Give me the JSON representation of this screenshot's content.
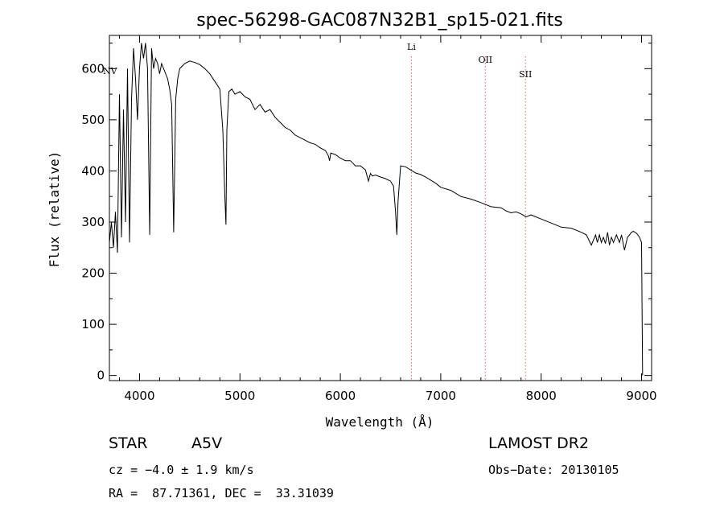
{
  "chart_data": {
    "type": "line",
    "title": "spec-56298-GAC087N32B1_sp15-021.fits",
    "xlabel": "Wavelength (Å)",
    "ylabel": "Flux (relative)",
    "xlim": [
      3700,
      9100
    ],
    "ylim": [
      -10,
      665
    ],
    "xticks": [
      4000,
      5000,
      6000,
      7000,
      8000,
      9000
    ],
    "yticks": [
      0,
      100,
      200,
      300,
      400,
      500,
      600
    ],
    "grid": false,
    "spectral_lines": [
      {
        "label": "NV",
        "x": 3720
      },
      {
        "label": "Li",
        "x": 6708
      },
      {
        "label": "OII",
        "x": 7444
      },
      {
        "label": "SII",
        "x": 7844
      }
    ],
    "series": [
      {
        "x": [
          3700,
          3720,
          3740,
          3760,
          3780,
          3800,
          3820,
          3840,
          3860,
          3880,
          3900,
          3920,
          3940,
          3960,
          3980,
          4000,
          4020,
          4040,
          4060,
          4080,
          4101,
          4120,
          4140,
          4160,
          4180,
          4200,
          4220,
          4240,
          4260,
          4280,
          4300,
          4320,
          4340,
          4360,
          4380,
          4400,
          4450,
          4500,
          4550,
          4600,
          4650,
          4700,
          4750,
          4800,
          4830,
          4850,
          4861,
          4870,
          4890,
          4920,
          4950,
          5000,
          5050,
          5100,
          5150,
          5200,
          5250,
          5300,
          5350,
          5400,
          5450,
          5500,
          5550,
          5600,
          5650,
          5700,
          5750,
          5800,
          5850,
          5880,
          5893,
          5905,
          5950,
          6000,
          6050,
          6100,
          6150,
          6200,
          6250,
          6280,
          6300,
          6320,
          6350,
          6400,
          6450,
          6500,
          6530,
          6550,
          6563,
          6575,
          6600,
          6650,
          6700,
          6750,
          6800,
          6850,
          6900,
          6950,
          7000,
          7100,
          7200,
          7300,
          7400,
          7500,
          7600,
          7650,
          7700,
          7750,
          7800,
          7850,
          7900,
          8000,
          8100,
          8200,
          8300,
          8400,
          8450,
          8500,
          8542,
          8560,
          8580,
          8600,
          8620,
          8640,
          8662,
          8680,
          8700,
          8720,
          8750,
          8780,
          8800,
          8830,
          8860,
          8880,
          8900,
          8920,
          8950,
          8980,
          9000,
          9010
        ],
        "values": [
          260,
          300,
          250,
          320,
          240,
          550,
          270,
          520,
          300,
          600,
          260,
          540,
          640,
          580,
          500,
          600,
          650,
          620,
          650,
          600,
          275,
          640,
          600,
          620,
          610,
          590,
          610,
          600,
          590,
          580,
          560,
          530,
          280,
          540,
          580,
          600,
          610,
          615,
          612,
          608,
          600,
          590,
          575,
          560,
          480,
          350,
          295,
          480,
          555,
          560,
          550,
          555,
          545,
          540,
          520,
          530,
          515,
          520,
          505,
          495,
          485,
          480,
          470,
          465,
          460,
          455,
          452,
          445,
          440,
          430,
          420,
          435,
          432,
          425,
          420,
          420,
          410,
          410,
          402,
          380,
          395,
          390,
          392,
          388,
          385,
          380,
          370,
          320,
          275,
          340,
          410,
          408,
          402,
          396,
          393,
          388,
          382,
          376,
          368,
          362,
          350,
          345,
          338,
          330,
          328,
          322,
          318,
          320,
          316,
          310,
          314,
          306,
          298,
          290,
          288,
          280,
          275,
          255,
          275,
          260,
          275,
          260,
          270,
          258,
          280,
          255,
          270,
          260,
          275,
          260,
          275,
          245,
          270,
          275,
          280,
          282,
          278,
          270,
          260,
          0
        ]
      }
    ]
  },
  "info": {
    "class_label": "STAR",
    "subclass": "A5V",
    "survey": "LAMOST DR2",
    "cz": "cz = −4.0 ± 1.9 km/s",
    "obs_date": "Obs−Date: 20130105",
    "coords": "RA =  87.71361, DEC =  33.31039"
  }
}
